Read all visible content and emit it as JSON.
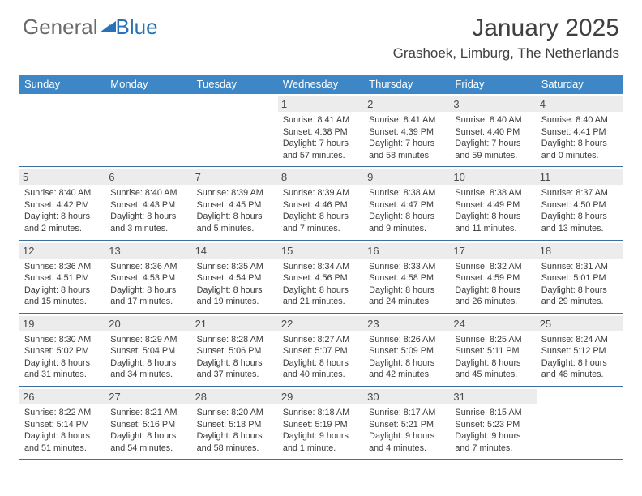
{
  "brand": {
    "part1": "General",
    "part2": "Blue",
    "triangle_color": "#2a72b5"
  },
  "title": {
    "month": "January 2025",
    "location": "Grashoek, Limburg, The Netherlands"
  },
  "colors": {
    "header_bg": "#3d87c7",
    "header_text": "#ffffff",
    "daynum_bg": "#ececec",
    "week_divider": "#3d6fa0",
    "text": "#3a3a3a"
  },
  "day_names": [
    "Sunday",
    "Monday",
    "Tuesday",
    "Wednesday",
    "Thursday",
    "Friday",
    "Saturday"
  ],
  "weeks": [
    [
      {
        "n": "",
        "blank": true
      },
      {
        "n": "",
        "blank": true
      },
      {
        "n": "",
        "blank": true
      },
      {
        "n": "1",
        "sr": "8:41 AM",
        "ss": "4:38 PM",
        "dh": "7",
        "dm": "57"
      },
      {
        "n": "2",
        "sr": "8:41 AM",
        "ss": "4:39 PM",
        "dh": "7",
        "dm": "58"
      },
      {
        "n": "3",
        "sr": "8:40 AM",
        "ss": "4:40 PM",
        "dh": "7",
        "dm": "59"
      },
      {
        "n": "4",
        "sr": "8:40 AM",
        "ss": "4:41 PM",
        "dh": "8",
        "dm": "0"
      }
    ],
    [
      {
        "n": "5",
        "sr": "8:40 AM",
        "ss": "4:42 PM",
        "dh": "8",
        "dm": "2"
      },
      {
        "n": "6",
        "sr": "8:40 AM",
        "ss": "4:43 PM",
        "dh": "8",
        "dm": "3"
      },
      {
        "n": "7",
        "sr": "8:39 AM",
        "ss": "4:45 PM",
        "dh": "8",
        "dm": "5"
      },
      {
        "n": "8",
        "sr": "8:39 AM",
        "ss": "4:46 PM",
        "dh": "8",
        "dm": "7"
      },
      {
        "n": "9",
        "sr": "8:38 AM",
        "ss": "4:47 PM",
        "dh": "8",
        "dm": "9"
      },
      {
        "n": "10",
        "sr": "8:38 AM",
        "ss": "4:49 PM",
        "dh": "8",
        "dm": "11"
      },
      {
        "n": "11",
        "sr": "8:37 AM",
        "ss": "4:50 PM",
        "dh": "8",
        "dm": "13"
      }
    ],
    [
      {
        "n": "12",
        "sr": "8:36 AM",
        "ss": "4:51 PM",
        "dh": "8",
        "dm": "15"
      },
      {
        "n": "13",
        "sr": "8:36 AM",
        "ss": "4:53 PM",
        "dh": "8",
        "dm": "17"
      },
      {
        "n": "14",
        "sr": "8:35 AM",
        "ss": "4:54 PM",
        "dh": "8",
        "dm": "19"
      },
      {
        "n": "15",
        "sr": "8:34 AM",
        "ss": "4:56 PM",
        "dh": "8",
        "dm": "21"
      },
      {
        "n": "16",
        "sr": "8:33 AM",
        "ss": "4:58 PM",
        "dh": "8",
        "dm": "24"
      },
      {
        "n": "17",
        "sr": "8:32 AM",
        "ss": "4:59 PM",
        "dh": "8",
        "dm": "26"
      },
      {
        "n": "18",
        "sr": "8:31 AM",
        "ss": "5:01 PM",
        "dh": "8",
        "dm": "29"
      }
    ],
    [
      {
        "n": "19",
        "sr": "8:30 AM",
        "ss": "5:02 PM",
        "dh": "8",
        "dm": "31"
      },
      {
        "n": "20",
        "sr": "8:29 AM",
        "ss": "5:04 PM",
        "dh": "8",
        "dm": "34"
      },
      {
        "n": "21",
        "sr": "8:28 AM",
        "ss": "5:06 PM",
        "dh": "8",
        "dm": "37"
      },
      {
        "n": "22",
        "sr": "8:27 AM",
        "ss": "5:07 PM",
        "dh": "8",
        "dm": "40"
      },
      {
        "n": "23",
        "sr": "8:26 AM",
        "ss": "5:09 PM",
        "dh": "8",
        "dm": "42"
      },
      {
        "n": "24",
        "sr": "8:25 AM",
        "ss": "5:11 PM",
        "dh": "8",
        "dm": "45"
      },
      {
        "n": "25",
        "sr": "8:24 AM",
        "ss": "5:12 PM",
        "dh": "8",
        "dm": "48"
      }
    ],
    [
      {
        "n": "26",
        "sr": "8:22 AM",
        "ss": "5:14 PM",
        "dh": "8",
        "dm": "51"
      },
      {
        "n": "27",
        "sr": "8:21 AM",
        "ss": "5:16 PM",
        "dh": "8",
        "dm": "54"
      },
      {
        "n": "28",
        "sr": "8:20 AM",
        "ss": "5:18 PM",
        "dh": "8",
        "dm": "58"
      },
      {
        "n": "29",
        "sr": "8:18 AM",
        "ss": "5:19 PM",
        "dh": "9",
        "dm": "1"
      },
      {
        "n": "30",
        "sr": "8:17 AM",
        "ss": "5:21 PM",
        "dh": "9",
        "dm": "4"
      },
      {
        "n": "31",
        "sr": "8:15 AM",
        "ss": "5:23 PM",
        "dh": "9",
        "dm": "7"
      },
      {
        "n": "",
        "blank": true
      }
    ]
  ],
  "labels": {
    "sunrise": "Sunrise:",
    "sunset": "Sunset:",
    "daylight": "Daylight:",
    "hours": "hours",
    "and": "and",
    "minute": "minute",
    "minutes": "minutes"
  }
}
